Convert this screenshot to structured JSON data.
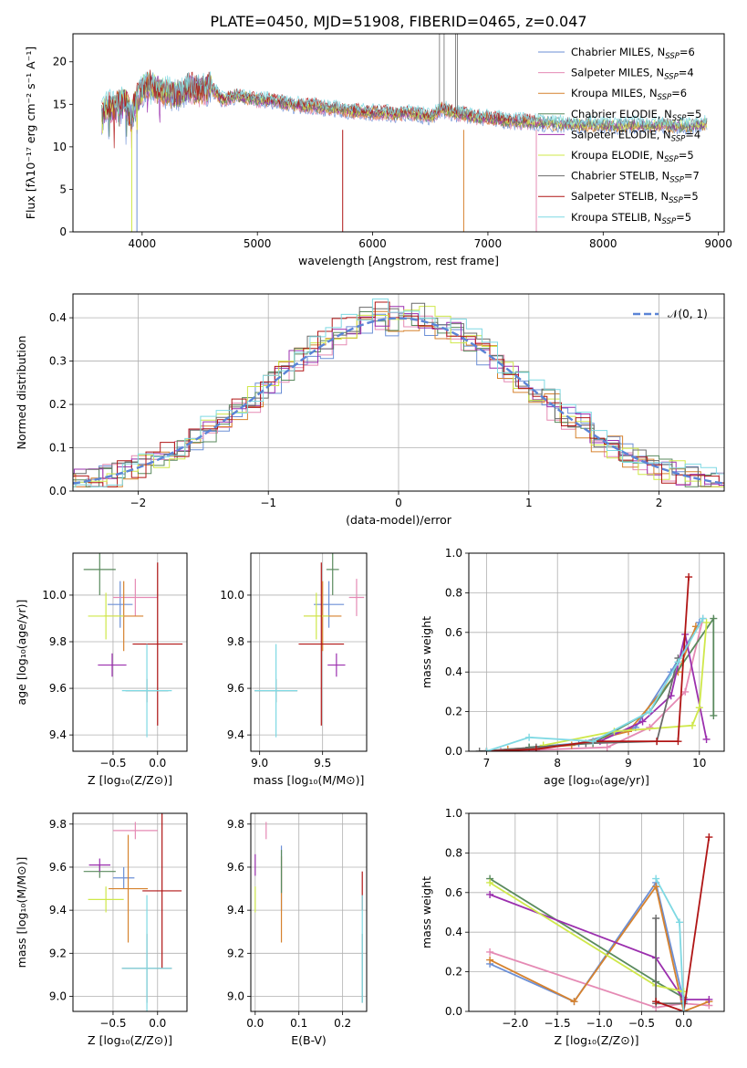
{
  "figure_title": "PLATE=0450, MJD=51908, FIBERID=0465, z=0.047",
  "models": [
    {
      "name": "Chabrier MILES",
      "nssp": "6",
      "color": "#6b8fd6"
    },
    {
      "name": "Salpeter MILES",
      "nssp": "4",
      "color": "#e58ab4"
    },
    {
      "name": "Kroupa MILES",
      "nssp": "6",
      "color": "#d6822e"
    },
    {
      "name": "Chabrier ELODIE",
      "nssp": "5",
      "color": "#5a8a5e"
    },
    {
      "name": "Salpeter ELODIE",
      "nssp": "4",
      "color": "#9b2fae"
    },
    {
      "name": "Kroupa ELODIE",
      "nssp": "5",
      "color": "#cfe84a"
    },
    {
      "name": "Chabrier STELIB",
      "nssp": "7",
      "color": "#6b6b6b"
    },
    {
      "name": "Salpeter STELIB",
      "nssp": "5",
      "color": "#b01515"
    },
    {
      "name": "Kroupa STELIB",
      "nssp": "5",
      "color": "#7fd9e3"
    }
  ],
  "chart_data": [
    {
      "id": "spectrum",
      "type": "line",
      "xlabel": "wavelength [Angstrom, rest frame]",
      "ylabel": "Flux [fλ10⁻¹⁷ erg cm⁻² s⁻¹ A⁻¹]",
      "xlim": [
        3400,
        9050
      ],
      "ylim": [
        0,
        23.3
      ],
      "xticks": [
        4000,
        5000,
        6000,
        7000,
        8000,
        9000
      ],
      "yticks": [
        0,
        5,
        10,
        15,
        20
      ],
      "legend": "top-right",
      "x": [
        3650,
        3700,
        3750,
        3800,
        3850,
        3900,
        3950,
        4000,
        4050,
        4100,
        4200,
        4300,
        4400,
        4500,
        4600,
        4700,
        4800,
        4900,
        5000,
        5100,
        5200,
        5300,
        5400,
        5500,
        5600,
        5700,
        5800,
        5900,
        6000,
        6100,
        6200,
        6300,
        6400,
        6500,
        6600,
        6700,
        6800,
        6900,
        7000,
        7100,
        7200,
        7300,
        7400,
        7500,
        7600,
        7700,
        7800,
        7900,
        8000,
        8100,
        8200,
        8300,
        8400,
        8500,
        8600,
        8700,
        8800,
        8900
      ],
      "flux": [
        13.5,
        15.0,
        14.5,
        15.0,
        15.5,
        13.5,
        15.5,
        16.5,
        17.5,
        17.0,
        16.5,
        16.0,
        17.0,
        16.5,
        17.0,
        15.5,
        16.0,
        15.8,
        15.5,
        15.5,
        15.2,
        15.0,
        14.8,
        14.8,
        14.5,
        14.5,
        14.2,
        14.2,
        14.0,
        14.0,
        13.8,
        14.0,
        13.8,
        13.5,
        14.5,
        14.0,
        13.8,
        13.5,
        13.4,
        13.2,
        13.0,
        13.0,
        12.9,
        12.8,
        12.7,
        12.7,
        12.6,
        12.6,
        12.6,
        12.5,
        12.5,
        12.6,
        12.4,
        12.6,
        12.5,
        12.4,
        12.6,
        12.8
      ]
    },
    {
      "id": "residuals",
      "type": "histogram",
      "xlabel": "(data-model)/error",
      "ylabel": "Normed distribution",
      "xlim": [
        -2.5,
        2.5
      ],
      "ylim": [
        0,
        0.455
      ],
      "xticks": [
        -2,
        -1,
        0,
        1,
        2
      ],
      "yticks": [
        0.0,
        0.1,
        0.2,
        0.3,
        0.4
      ],
      "reference": {
        "label": "𝒩(0, 1)",
        "mu": 0,
        "sigma": 1,
        "color": "#5b84d6"
      },
      "legend": "top-right"
    },
    {
      "id": "age-vs-Z",
      "type": "scatter",
      "xlabel": "Z [log₁₀(Z/Z⊙)]",
      "ylabel": "age  [log₁₀(age/yr)]",
      "xlim": [
        -0.95,
        0.33
      ],
      "ylim": [
        9.33,
        10.18
      ],
      "xticks": [
        -0.5,
        0.0
      ],
      "yticks": [
        9.4,
        9.6,
        9.8,
        10.0
      ],
      "points": [
        {
          "m": 0,
          "x": -0.42,
          "y": 9.96,
          "xe": 0.14,
          "ye": 0.1
        },
        {
          "m": 1,
          "x": -0.25,
          "y": 9.99,
          "xe": 0.25,
          "ye": 0.08
        },
        {
          "m": 2,
          "x": -0.38,
          "y": 9.91,
          "xe": 0.22,
          "ye": 0.15
        },
        {
          "m": 3,
          "x": -0.65,
          "y": 10.11,
          "xe": 0.18,
          "ye": 0.11
        },
        {
          "m": 4,
          "x": -0.51,
          "y": 9.7,
          "xe": 0.16,
          "ye": 0.05
        },
        {
          "m": 5,
          "x": -0.58,
          "y": 9.91,
          "xe": 0.2,
          "ye": 0.1
        },
        {
          "m": 6,
          "x": -0.12,
          "y": 9.59,
          "xe": 0.24,
          "ye": 0.05
        },
        {
          "m": 7,
          "x": 0.0,
          "y": 9.79,
          "xe": 0.28,
          "ye": 0.35
        },
        {
          "m": 8,
          "x": -0.12,
          "y": 9.59,
          "xe": 0.28,
          "ye": 0.2
        }
      ]
    },
    {
      "id": "age-vs-mass",
      "type": "scatter",
      "xlabel": "mass [log₁₀(M/M⊙)]",
      "ylabel": "",
      "xlim": [
        8.93,
        9.85
      ],
      "ylim": [
        9.33,
        10.18
      ],
      "xticks": [
        9.0,
        9.5
      ],
      "yticks": [
        9.4,
        9.6,
        9.8,
        10.0
      ],
      "points": [
        {
          "m": 0,
          "x": 9.55,
          "y": 9.96,
          "xe": 0.12,
          "ye": 0.1
        },
        {
          "m": 1,
          "x": 9.77,
          "y": 9.99,
          "xe": 0.06,
          "ye": 0.08
        },
        {
          "m": 2,
          "x": 9.5,
          "y": 9.91,
          "xe": 0.15,
          "ye": 0.15
        },
        {
          "m": 3,
          "x": 9.58,
          "y": 10.11,
          "xe": 0.05,
          "ye": 0.11
        },
        {
          "m": 4,
          "x": 9.61,
          "y": 9.7,
          "xe": 0.07,
          "ye": 0.05
        },
        {
          "m": 5,
          "x": 9.45,
          "y": 9.91,
          "xe": 0.1,
          "ye": 0.1
        },
        {
          "m": 6,
          "x": 9.13,
          "y": 9.59,
          "xe": 0.17,
          "ye": 0.05
        },
        {
          "m": 7,
          "x": 9.49,
          "y": 9.79,
          "xe": 0.18,
          "ye": 0.35
        },
        {
          "m": 8,
          "x": 9.13,
          "y": 9.59,
          "xe": 0.17,
          "ye": 0.2
        }
      ]
    },
    {
      "id": "mass-weight-vs-age",
      "type": "line",
      "xlabel": "age  [log₁₀(age/yr)]",
      "ylabel": "mass weight",
      "xlim": [
        6.75,
        10.35
      ],
      "ylim": [
        0,
        1.0
      ],
      "xticks": [
        7,
        8,
        9,
        10
      ],
      "yticks": [
        0.0,
        0.2,
        0.4,
        0.6,
        0.8,
        1.0
      ],
      "series": [
        {
          "m": 0,
          "x": [
            7.6,
            8.3,
            9.1,
            9.6,
            10.0
          ],
          "y": [
            0.02,
            0.04,
            0.12,
            0.4,
            0.65
          ]
        },
        {
          "m": 1,
          "x": [
            7.2,
            8.7,
            9.3,
            9.8,
            10.05
          ],
          "y": [
            0.0,
            0.02,
            0.12,
            0.3,
            0.67
          ]
        },
        {
          "m": 2,
          "x": [
            7.3,
            8.2,
            9.0,
            9.7,
            9.95
          ],
          "y": [
            0.01,
            0.03,
            0.1,
            0.4,
            0.63
          ]
        },
        {
          "m": 3,
          "x": [
            7.6,
            8.5,
            9.3,
            10.2,
            10.2
          ],
          "y": [
            0.02,
            0.04,
            0.2,
            0.67,
            0.18
          ]
        },
        {
          "m": 4,
          "x": [
            8.6,
            9.2,
            9.6,
            9.8,
            10.1
          ],
          "y": [
            0.05,
            0.15,
            0.28,
            0.59,
            0.06
          ]
        },
        {
          "m": 5,
          "x": [
            7.8,
            8.8,
            9.9,
            10.0,
            10.1
          ],
          "y": [
            0.03,
            0.1,
            0.13,
            0.22,
            0.65
          ]
        },
        {
          "m": 6,
          "x": [
            6.9,
            7.7,
            8.4,
            9.4,
            9.7
          ],
          "y": [
            0.0,
            0.02,
            0.04,
            0.05,
            0.47
          ]
        },
        {
          "m": 7,
          "x": [
            7.0,
            7.7,
            8.5,
            9.4,
            9.7,
            9.85
          ],
          "y": [
            0.0,
            0.01,
            0.05,
            0.05,
            0.05,
            0.88
          ]
        },
        {
          "m": 8,
          "x": [
            7.0,
            7.6,
            8.5,
            9.3,
            9.7,
            10.05
          ],
          "y": [
            0.0,
            0.07,
            0.05,
            0.2,
            0.45,
            0.67
          ]
        }
      ]
    },
    {
      "id": "mass-vs-Z",
      "type": "scatter",
      "xlabel": "Z [log₁₀(Z/Z⊙)]",
      "ylabel": "mass [log₁₀(M/M⊙)]",
      "xlim": [
        -0.95,
        0.33
      ],
      "ylim": [
        8.93,
        9.85
      ],
      "xticks": [
        -0.5,
        0.0
      ],
      "yticks": [
        9.0,
        9.2,
        9.4,
        9.6,
        9.8
      ],
      "points": [
        {
          "m": 0,
          "x": -0.38,
          "y": 9.55,
          "xe": 0.12,
          "ye": 0.05
        },
        {
          "m": 1,
          "x": -0.25,
          "y": 9.77,
          "xe": 0.25,
          "ye": 0.04
        },
        {
          "m": 2,
          "x": -0.33,
          "y": 9.5,
          "xe": 0.22,
          "ye": 0.25
        },
        {
          "m": 3,
          "x": -0.65,
          "y": 9.58,
          "xe": 0.18,
          "ye": 0.03
        },
        {
          "m": 4,
          "x": -0.65,
          "y": 9.61,
          "xe": 0.12,
          "ye": 0.03
        },
        {
          "m": 5,
          "x": -0.58,
          "y": 9.45,
          "xe": 0.2,
          "ye": 0.06
        },
        {
          "m": 6,
          "x": -0.12,
          "y": 9.13,
          "xe": 0.28,
          "ye": 0.16
        },
        {
          "m": 7,
          "x": 0.05,
          "y": 9.49,
          "xe": 0.22,
          "ye": 0.36
        },
        {
          "m": 8,
          "x": -0.12,
          "y": 9.13,
          "xe": 0.28,
          "ye": 0.34
        }
      ]
    },
    {
      "id": "mass-vs-EBV",
      "type": "scatter",
      "xlabel": "E(B-V)",
      "ylabel": "",
      "xlim": [
        -0.01,
        0.255
      ],
      "ylim": [
        8.93,
        9.85
      ],
      "xticks": [
        0.0,
        0.1,
        0.2
      ],
      "yticks": [
        9.0,
        9.2,
        9.4,
        9.6,
        9.8
      ],
      "points": [
        {
          "m": 0,
          "x": 0.06,
          "y": 9.55,
          "xe": 0,
          "ye": 0.15
        },
        {
          "m": 1,
          "x": 0.025,
          "y": 9.77,
          "xe": 0,
          "ye": 0.04
        },
        {
          "m": 2,
          "x": 0.06,
          "y": 9.45,
          "xe": 0,
          "ye": 0.2
        },
        {
          "m": 3,
          "x": 0.06,
          "y": 9.58,
          "xe": 0,
          "ye": 0.1
        },
        {
          "m": 4,
          "x": 0.0,
          "y": 9.61,
          "xe": 0,
          "ye": 0.05
        },
        {
          "m": 5,
          "x": 0.0,
          "y": 9.45,
          "xe": 0,
          "ye": 0.06
        },
        {
          "m": 6,
          "x": 0.245,
          "y": 9.13,
          "xe": 0,
          "ye": 0.16
        },
        {
          "m": 7,
          "x": 0.245,
          "y": 9.49,
          "xe": 0,
          "ye": 0.09
        },
        {
          "m": 8,
          "x": 0.245,
          "y": 9.22,
          "xe": 0,
          "ye": 0.25
        }
      ]
    },
    {
      "id": "mass-weight-vs-Z",
      "type": "line",
      "xlabel": "Z [log₁₀(Z/Z⊙)]",
      "ylabel": "mass weight",
      "xlim": [
        -2.55,
        0.48
      ],
      "ylim": [
        0,
        1.0
      ],
      "xticks": [
        -2.0,
        -1.5,
        -1.0,
        -0.5,
        0.0
      ],
      "yticks": [
        0.0,
        0.2,
        0.4,
        0.6,
        0.8,
        1.0
      ],
      "series": [
        {
          "m": 0,
          "x": [
            -2.3,
            -1.3,
            -0.33,
            0.0
          ],
          "y": [
            0.24,
            0.05,
            0.65,
            0.05
          ]
        },
        {
          "m": 1,
          "x": [
            -2.3,
            -0.33,
            0.0,
            0.3
          ],
          "y": [
            0.3,
            0.02,
            0.04,
            0.03
          ]
        },
        {
          "m": 2,
          "x": [
            -2.3,
            -1.3,
            -0.33,
            0.0,
            0.3
          ],
          "y": [
            0.26,
            0.05,
            0.63,
            0.0,
            0.05
          ]
        },
        {
          "m": 3,
          "x": [
            -2.3,
            -0.33,
            0.0
          ],
          "y": [
            0.67,
            0.15,
            0.07
          ]
        },
        {
          "m": 4,
          "x": [
            -2.3,
            -0.33,
            0.0,
            0.3
          ],
          "y": [
            0.59,
            0.27,
            0.06,
            0.06
          ]
        },
        {
          "m": 5,
          "x": [
            -2.3,
            -0.33,
            0.0
          ],
          "y": [
            0.65,
            0.13,
            0.1
          ]
        },
        {
          "m": 6,
          "x": [
            -0.33,
            -0.33,
            0.0
          ],
          "y": [
            0.47,
            0.04,
            0.04
          ]
        },
        {
          "m": 7,
          "x": [
            -0.33,
            0.0,
            0.3
          ],
          "y": [
            0.05,
            0.0,
            0.88
          ]
        },
        {
          "m": 8,
          "x": [
            -0.33,
            -0.05,
            0.0
          ],
          "y": [
            0.67,
            0.45,
            0.0
          ]
        }
      ]
    }
  ]
}
